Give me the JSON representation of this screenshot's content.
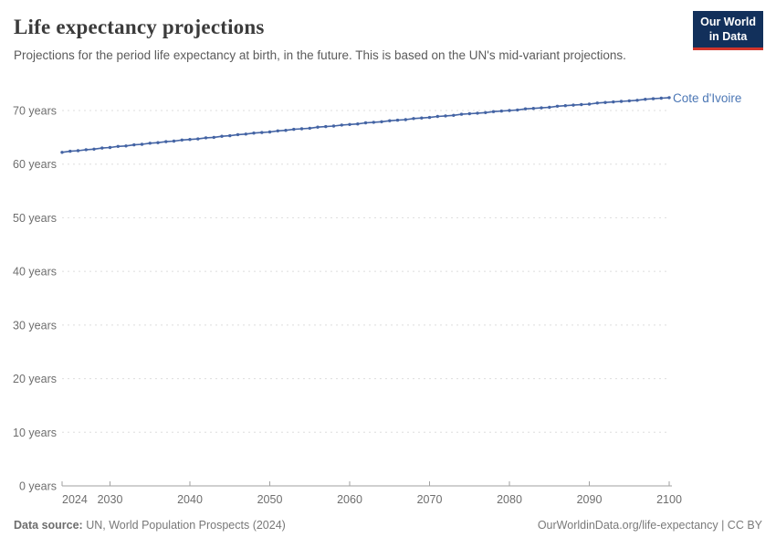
{
  "header": {
    "title": "Life expectancy projections",
    "subtitle": "Projections for the period life expectancy at birth, in the future. This is based on the UN's mid-variant projections.",
    "logo": {
      "line1": "Our World",
      "line2": "in Data"
    }
  },
  "theme": {
    "logo_bg": "#12305b",
    "logo_red": "#d1352c",
    "series_line": "#4464a4",
    "series_label": "#4c77b5",
    "grid_color": "#dddddd",
    "axis_color": "#a2a2a2",
    "tick_text": "#6e6e6e"
  },
  "chart_data": {
    "type": "line",
    "title": "Life expectancy projections",
    "xlabel": "",
    "ylabel": "years",
    "xlim": [
      2024,
      2100
    ],
    "ylim": [
      0,
      75
    ],
    "grid": "horizontal-dashed",
    "legend_position": "end-of-line-label",
    "xticks": [
      2024,
      2030,
      2040,
      2050,
      2060,
      2070,
      2080,
      2090,
      2100
    ],
    "yticks": [
      0,
      10,
      20,
      30,
      40,
      50,
      60,
      70
    ],
    "ytick_labels": [
      "0 years",
      "10 years",
      "20 years",
      "30 years",
      "40 years",
      "50 years",
      "60 years",
      "70 years"
    ],
    "x": [
      2024,
      2025,
      2026,
      2027,
      2028,
      2029,
      2030,
      2031,
      2032,
      2033,
      2034,
      2035,
      2036,
      2037,
      2038,
      2039,
      2040,
      2041,
      2042,
      2043,
      2044,
      2045,
      2046,
      2047,
      2048,
      2049,
      2050,
      2051,
      2052,
      2053,
      2054,
      2055,
      2056,
      2057,
      2058,
      2059,
      2060,
      2061,
      2062,
      2063,
      2064,
      2065,
      2066,
      2067,
      2068,
      2069,
      2070,
      2071,
      2072,
      2073,
      2074,
      2075,
      2076,
      2077,
      2078,
      2079,
      2080,
      2081,
      2082,
      2083,
      2084,
      2085,
      2086,
      2087,
      2088,
      2089,
      2090,
      2091,
      2092,
      2093,
      2094,
      2095,
      2096,
      2097,
      2098,
      2099,
      2100
    ],
    "series": [
      {
        "name": "Cote d'Ivoire",
        "color": "#4464a4",
        "values": [
          62.2,
          62.4,
          62.5,
          62.7,
          62.8,
          63.0,
          63.1,
          63.3,
          63.4,
          63.6,
          63.7,
          63.9,
          64.0,
          64.2,
          64.3,
          64.5,
          64.6,
          64.7,
          64.9,
          65.0,
          65.2,
          65.3,
          65.5,
          65.6,
          65.8,
          65.9,
          66.0,
          66.2,
          66.3,
          66.5,
          66.6,
          66.7,
          66.9,
          67.0,
          67.1,
          67.3,
          67.4,
          67.5,
          67.7,
          67.8,
          67.9,
          68.1,
          68.2,
          68.3,
          68.5,
          68.6,
          68.7,
          68.9,
          69.0,
          69.1,
          69.3,
          69.4,
          69.5,
          69.6,
          69.8,
          69.9,
          70.0,
          70.1,
          70.3,
          70.4,
          70.5,
          70.6,
          70.8,
          70.9,
          71.0,
          71.1,
          71.2,
          71.4,
          71.5,
          71.6,
          71.7,
          71.8,
          71.9,
          72.1,
          72.2,
          72.3,
          72.4
        ]
      }
    ]
  },
  "footer": {
    "datasource_label": "Data source:",
    "datasource_value": " UN, World Population Prospects (2024)",
    "link": "OurWorldinData.org/life-expectancy | CC BY"
  }
}
